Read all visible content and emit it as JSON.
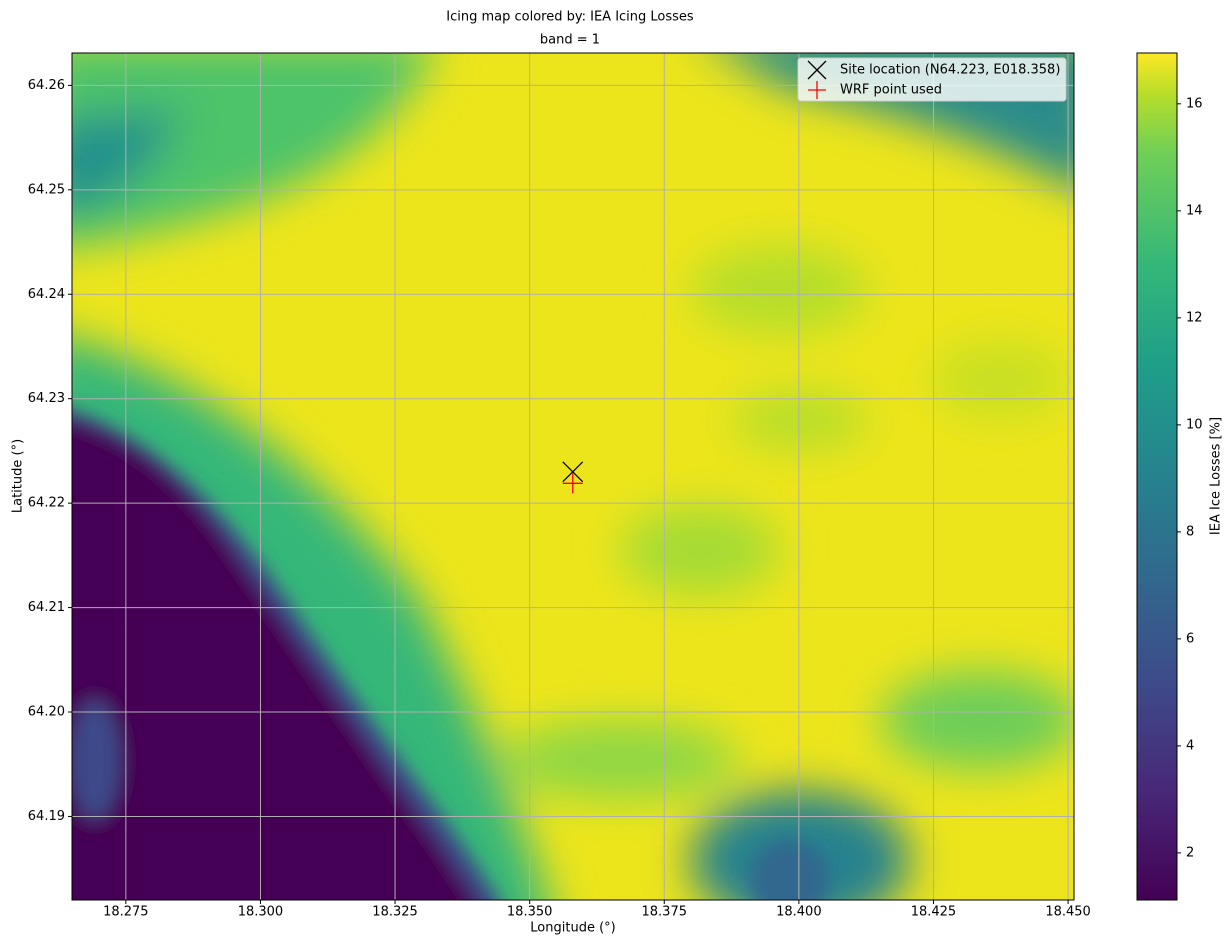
{
  "chart_data": {
    "type": "heatmap",
    "title": "Icing map colored by: IEA Icing Losses",
    "subtitle": "band = 1",
    "x_label": "Longitude (°)",
    "y_label": "Latitude (°)",
    "colorbar_label": "IEA Ice Losses [%]",
    "xlim": [
      18.265,
      18.4511
    ],
    "ylim": [
      64.182,
      64.2631
    ],
    "xticks": [
      18.275,
      {
        "value": 18.3,
        "label": "18.300"
      },
      18.325,
      {
        "value": 18.35,
        "label": "18.350"
      },
      18.375,
      {
        "value": 18.4,
        "label": "18.400"
      },
      18.425,
      {
        "value": 18.45,
        "label": "18.450"
      }
    ],
    "yticks": [
      64.19,
      {
        "value": 64.2,
        "label": "64.20"
      },
      64.21,
      64.22,
      64.23,
      64.24,
      64.25,
      64.26
    ],
    "clim": [
      1.12,
      16.95
    ],
    "cticks": [
      2,
      4,
      6,
      8,
      10,
      12,
      14,
      16
    ],
    "grid": true,
    "legend": "upper right",
    "series": [
      {
        "name": "Site location (N64.223, E018.358)",
        "marker": "x",
        "color": "#000000",
        "x": [
          18.358
        ],
        "y": [
          64.223
        ]
      },
      {
        "name": "WRF point used",
        "marker": "+",
        "color": "#ff0000",
        "x": [
          18.358
        ],
        "y": [
          64.2219
        ]
      }
    ]
  }
}
